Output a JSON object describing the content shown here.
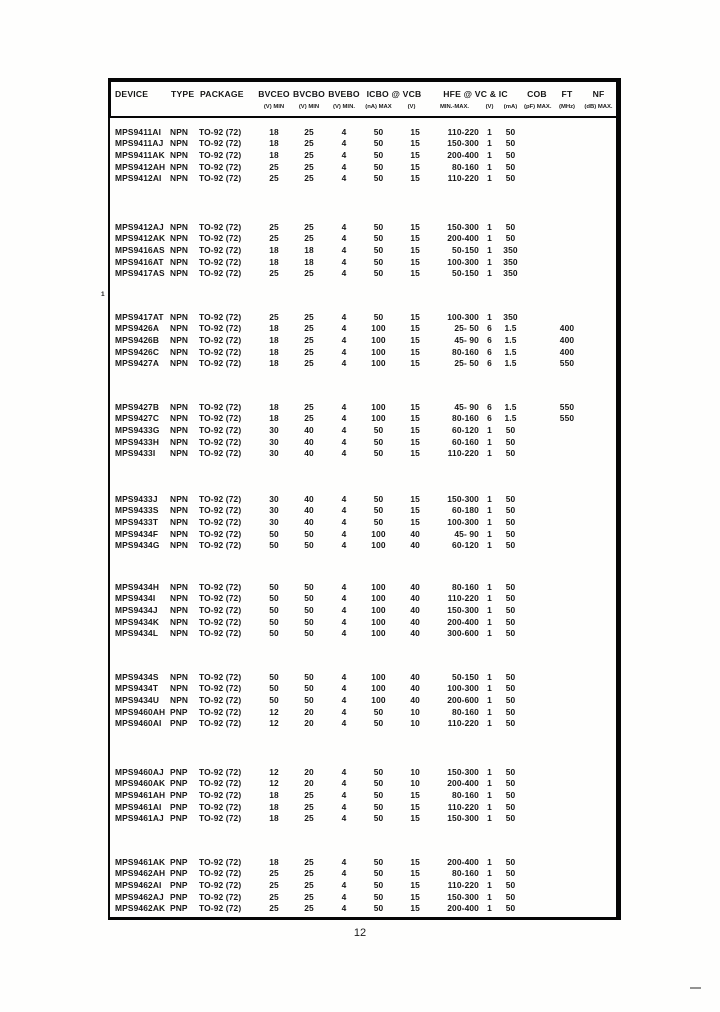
{
  "page_number": "12",
  "stray_mark": "1",
  "table": {
    "header": {
      "device": "DEVICE",
      "type": "TYPE",
      "package": "PACKAGE",
      "bvceo": "BVCEO",
      "bvceo_sub": "(V) MIN",
      "bvcbo": "BVCBO",
      "bvcbo_sub": "(V) MIN",
      "bvebo": "BVEBO",
      "bvebo_sub": "(V) MIN.",
      "icbo_vcb": "ICBO @ VCB",
      "icbo_sub": "(nA) MAX",
      "vcb_sub": "(V)",
      "hfe_vc_ic": "HFE @ VC & IC",
      "hfe_sub": "MIN.-MAX.",
      "vc_sub": "(V)",
      "ic_sub": "(mA)",
      "cob": "COB",
      "cob_sub": "(pF) MAX.",
      "ft": "FT",
      "ft_sub": "(MHz)",
      "nf": "NF",
      "nf_sub": "(dB) MAX."
    },
    "row_keys": [
      "device",
      "type",
      "package",
      "bvceo",
      "bvcbo",
      "bvebo",
      "icbo",
      "vcb",
      "hfe",
      "vc",
      "ic",
      "cob",
      "ft",
      "nf"
    ],
    "groups": [
      [
        [
          "MPS9411AI",
          "NPN",
          "TO-92 (72)",
          "18",
          "25",
          "4",
          "50",
          "15",
          "110-220",
          "1",
          "50",
          "",
          "",
          ""
        ],
        [
          "MPS9411AJ",
          "NPN",
          "TO-92 (72)",
          "18",
          "25",
          "4",
          "50",
          "15",
          "150-300",
          "1",
          "50",
          "",
          "",
          ""
        ],
        [
          "MPS9411AK",
          "NPN",
          "TO-92 (72)",
          "18",
          "25",
          "4",
          "50",
          "15",
          "200-400",
          "1",
          "50",
          "",
          "",
          ""
        ],
        [
          "MPS9412AH",
          "NPN",
          "TO-92 (72)",
          "25",
          "25",
          "4",
          "50",
          "15",
          "80-160",
          "1",
          "50",
          "",
          "",
          ""
        ],
        [
          "MPS9412AI",
          "NPN",
          "TO-92 (72)",
          "25",
          "25",
          "4",
          "50",
          "15",
          "110-220",
          "1",
          "50",
          "",
          "",
          ""
        ]
      ],
      [
        [
          "MPS9412AJ",
          "NPN",
          "TO-92 (72)",
          "25",
          "25",
          "4",
          "50",
          "15",
          "150-300",
          "1",
          "50",
          "",
          "",
          ""
        ],
        [
          "MPS9412AK",
          "NPN",
          "TO-92 (72)",
          "25",
          "25",
          "4",
          "50",
          "15",
          "200-400",
          "1",
          "50",
          "",
          "",
          ""
        ],
        [
          "MPS9416AS",
          "NPN",
          "TO-92 (72)",
          "18",
          "18",
          "4",
          "50",
          "15",
          "50-150",
          "1",
          "350",
          "",
          "",
          ""
        ],
        [
          "MPS9416AT",
          "NPN",
          "TO-92 (72)",
          "18",
          "18",
          "4",
          "50",
          "15",
          "100-300",
          "1",
          "350",
          "",
          "",
          ""
        ],
        [
          "MPS9417AS",
          "NPN",
          "TO-92 (72)",
          "25",
          "25",
          "4",
          "50",
          "15",
          "50-150",
          "1",
          "350",
          "",
          "",
          ""
        ]
      ],
      [
        [
          "MPS9417AT",
          "NPN",
          "TO-92 (72)",
          "25",
          "25",
          "4",
          "50",
          "15",
          "100-300",
          "1",
          "350",
          "",
          "",
          ""
        ],
        [
          "MPS9426A",
          "NPN",
          "TO-92 (72)",
          "18",
          "25",
          "4",
          "100",
          "15",
          "25- 50",
          "6",
          "1.5",
          "",
          "400",
          ""
        ],
        [
          "MPS9426B",
          "NPN",
          "TO-92 (72)",
          "18",
          "25",
          "4",
          "100",
          "15",
          "45- 90",
          "6",
          "1.5",
          "",
          "400",
          ""
        ],
        [
          "MPS9426C",
          "NPN",
          "TO-92 (72)",
          "18",
          "25",
          "4",
          "100",
          "15",
          "80-160",
          "6",
          "1.5",
          "",
          "400",
          ""
        ],
        [
          "MPS9427A",
          "NPN",
          "TO-92 (72)",
          "18",
          "25",
          "4",
          "100",
          "15",
          "25- 50",
          "6",
          "1.5",
          "",
          "550",
          ""
        ]
      ],
      [
        [
          "MPS9427B",
          "NPN",
          "TO-92 (72)",
          "18",
          "25",
          "4",
          "100",
          "15",
          "45- 90",
          "6",
          "1.5",
          "",
          "550",
          ""
        ],
        [
          "MPS9427C",
          "NPN",
          "TO-92 (72)",
          "18",
          "25",
          "4",
          "100",
          "15",
          "80-160",
          "6",
          "1.5",
          "",
          "550",
          ""
        ],
        [
          "MPS9433G",
          "NPN",
          "TO-92 (72)",
          "30",
          "40",
          "4",
          "50",
          "15",
          "60-120",
          "1",
          "50",
          "",
          "",
          ""
        ],
        [
          "MPS9433H",
          "NPN",
          "TO-92 (72)",
          "30",
          "40",
          "4",
          "50",
          "15",
          "60-160",
          "1",
          "50",
          "",
          "",
          ""
        ],
        [
          "MPS9433I",
          "NPN",
          "TO-92 (72)",
          "30",
          "40",
          "4",
          "50",
          "15",
          "110-220",
          "1",
          "50",
          "",
          "",
          ""
        ]
      ],
      [
        [
          "MPS9433J",
          "NPN",
          "TO-92 (72)",
          "30",
          "40",
          "4",
          "50",
          "15",
          "150-300",
          "1",
          "50",
          "",
          "",
          ""
        ],
        [
          "MPS9433S",
          "NPN",
          "TO-92 (72)",
          "30",
          "40",
          "4",
          "50",
          "15",
          "60-180",
          "1",
          "50",
          "",
          "",
          ""
        ],
        [
          "MPS9433T",
          "NPN",
          "TO-92 (72)",
          "30",
          "40",
          "4",
          "50",
          "15",
          "100-300",
          "1",
          "50",
          "",
          "",
          ""
        ],
        [
          "MPS9434F",
          "NPN",
          "TO-92 (72)",
          "50",
          "50",
          "4",
          "100",
          "40",
          "45- 90",
          "1",
          "50",
          "",
          "",
          ""
        ],
        [
          "MPS9434G",
          "NPN",
          "TO-92 (72)",
          "50",
          "50",
          "4",
          "100",
          "40",
          "60-120",
          "1",
          "50",
          "",
          "",
          ""
        ]
      ],
      [
        [
          "MPS9434H",
          "NPN",
          "TO-92 (72)",
          "50",
          "50",
          "4",
          "100",
          "40",
          "80-160",
          "1",
          "50",
          "",
          "",
          ""
        ],
        [
          "MPS9434I",
          "NPN",
          "TO-92 (72)",
          "50",
          "50",
          "4",
          "100",
          "40",
          "110-220",
          "1",
          "50",
          "",
          "",
          ""
        ],
        [
          "MPS9434J",
          "NPN",
          "TO-92 (72)",
          "50",
          "50",
          "4",
          "100",
          "40",
          "150-300",
          "1",
          "50",
          "",
          "",
          ""
        ],
        [
          "MPS9434K",
          "NPN",
          "TO-92 (72)",
          "50",
          "50",
          "4",
          "100",
          "40",
          "200-400",
          "1",
          "50",
          "",
          "",
          ""
        ],
        [
          "MPS9434L",
          "NPN",
          "TO-92 (72)",
          "50",
          "50",
          "4",
          "100",
          "40",
          "300-600",
          "1",
          "50",
          "",
          "",
          ""
        ]
      ],
      [
        [
          "MPS9434S",
          "NPN",
          "TO-92 (72)",
          "50",
          "50",
          "4",
          "100",
          "40",
          "50-150",
          "1",
          "50",
          "",
          "",
          ""
        ],
        [
          "MPS9434T",
          "NPN",
          "TO-92 (72)",
          "50",
          "50",
          "4",
          "100",
          "40",
          "100-300",
          "1",
          "50",
          "",
          "",
          ""
        ],
        [
          "MPS9434U",
          "NPN",
          "TO-92 (72)",
          "50",
          "50",
          "4",
          "100",
          "40",
          "200-600",
          "1",
          "50",
          "",
          "",
          ""
        ],
        [
          "MPS9460AH",
          "PNP",
          "TO-92 (72)",
          "12",
          "20",
          "4",
          "50",
          "10",
          "80-160",
          "1",
          "50",
          "",
          "",
          ""
        ],
        [
          "MPS9460AI",
          "PNP",
          "TO-92 (72)",
          "12",
          "20",
          "4",
          "50",
          "10",
          "110-220",
          "1",
          "50",
          "",
          "",
          ""
        ]
      ],
      [
        [
          "MPS9460AJ",
          "PNP",
          "TO-92 (72)",
          "12",
          "20",
          "4",
          "50",
          "10",
          "150-300",
          "1",
          "50",
          "",
          "",
          ""
        ],
        [
          "MPS9460AK",
          "PNP",
          "TO-92 (72)",
          "12",
          "20",
          "4",
          "50",
          "10",
          "200-400",
          "1",
          "50",
          "",
          "",
          ""
        ],
        [
          "MPS9461AH",
          "PNP",
          "TO-92 (72)",
          "18",
          "25",
          "4",
          "50",
          "15",
          "80-160",
          "1",
          "50",
          "",
          "",
          ""
        ],
        [
          "MPS9461AI",
          "PNP",
          "TO-92 (72)",
          "18",
          "25",
          "4",
          "50",
          "15",
          "110-220",
          "1",
          "50",
          "",
          "",
          ""
        ],
        [
          "MPS9461AJ",
          "PNP",
          "TO-92 (72)",
          "18",
          "25",
          "4",
          "50",
          "15",
          "150-300",
          "1",
          "50",
          "",
          "",
          ""
        ]
      ],
      [
        [
          "MPS9461AK",
          "PNP",
          "TO-92 (72)",
          "18",
          "25",
          "4",
          "50",
          "15",
          "200-400",
          "1",
          "50",
          "",
          "",
          ""
        ],
        [
          "MPS9462AH",
          "PNP",
          "TO-92 (72)",
          "25",
          "25",
          "4",
          "50",
          "15",
          "80-160",
          "1",
          "50",
          "",
          "",
          ""
        ],
        [
          "MPS9462AI",
          "PNP",
          "TO-92 (72)",
          "25",
          "25",
          "4",
          "50",
          "15",
          "110-220",
          "1",
          "50",
          "",
          "",
          ""
        ],
        [
          "MPS9462AJ",
          "PNP",
          "TO-92 (72)",
          "25",
          "25",
          "4",
          "50",
          "15",
          "150-300",
          "1",
          "50",
          "",
          "",
          ""
        ],
        [
          "MPS9462AK",
          "PNP",
          "TO-92 (72)",
          "25",
          "25",
          "4",
          "50",
          "15",
          "200-400",
          "1",
          "50",
          "",
          "",
          ""
        ]
      ]
    ]
  }
}
